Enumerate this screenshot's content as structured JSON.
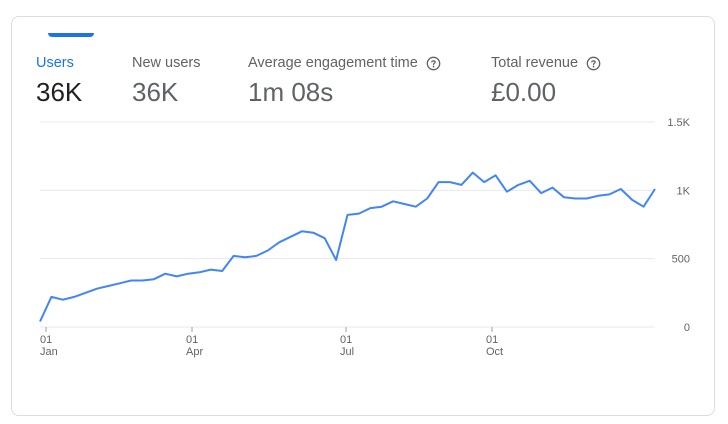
{
  "metrics": [
    {
      "label": "Users",
      "value": "36K"
    },
    {
      "label": "New users",
      "value": "36K"
    },
    {
      "label": "Average engagement time",
      "value": "1m 08s"
    },
    {
      "label": "Total revenue",
      "value": "£0.00"
    }
  ],
  "chart_data": {
    "type": "line",
    "title": "",
    "xlabel": "",
    "ylabel": "",
    "ylim": [
      0,
      1500
    ],
    "y_ticks": [
      "0",
      "500",
      "1K",
      "1.5K"
    ],
    "x_ticks": [
      {
        "day": "01",
        "month": "Jan"
      },
      {
        "day": "01",
        "month": "Apr"
      },
      {
        "day": "01",
        "month": "Jul"
      },
      {
        "day": "01",
        "month": "Oct"
      }
    ],
    "grid": true,
    "line_color": "#4285f4",
    "series": [
      {
        "values": [
          40,
          220,
          200,
          220,
          250,
          280,
          300,
          320,
          340,
          340,
          350,
          390,
          370,
          390,
          400,
          420,
          410,
          520,
          510,
          520,
          560,
          620,
          660,
          700,
          690,
          650,
          490,
          820,
          830,
          870,
          880,
          920,
          900,
          880,
          940,
          1060,
          1060,
          1040,
          1130,
          1060,
          1110,
          990,
          1040,
          1070,
          980,
          1020,
          950,
          940,
          940,
          960,
          970,
          1010,
          930,
          880,
          1010
        ]
      }
    ]
  }
}
